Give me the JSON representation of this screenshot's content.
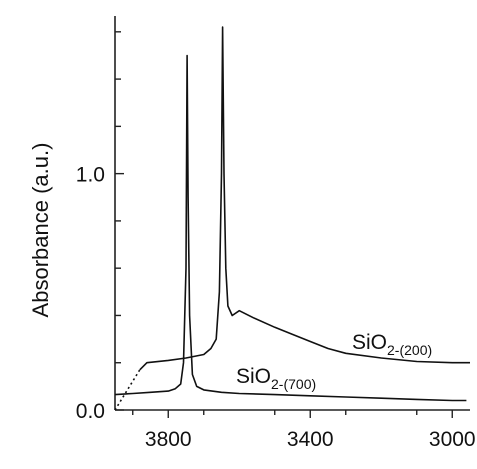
{
  "chart_data": {
    "type": "line",
    "title": "",
    "xlabel": "",
    "ylabel": "Absorbance (a.u.)",
    "xlim": [
      3950,
      2950
    ],
    "ylim": [
      0.0,
      1.65
    ],
    "x_reversed": true,
    "grid": false,
    "x_ticks": [
      3800,
      3400,
      3000
    ],
    "x_tick_labels": [
      "3800",
      "3400",
      "3000"
    ],
    "y_ticks": [
      0.0,
      1.0
    ],
    "y_tick_labels": [
      "0.0",
      "1.0"
    ],
    "y_minor_ticks": [
      0.2,
      0.4,
      0.6,
      0.8,
      1.2,
      1.4,
      1.6
    ],
    "series": [
      {
        "name": "SiO2-(700)",
        "label_main": "SiO",
        "label_sub": "2-(700)",
        "x": [
          3950,
          3900,
          3850,
          3800,
          3780,
          3765,
          3757,
          3750,
          3747,
          3744,
          3740,
          3732,
          3720,
          3700,
          3650,
          3600,
          3500,
          3400,
          3300,
          3200,
          3100,
          3000,
          2960
        ],
        "y": [
          0.065,
          0.07,
          0.075,
          0.08,
          0.09,
          0.11,
          0.2,
          0.6,
          1.5,
          0.9,
          0.4,
          0.15,
          0.1,
          0.085,
          0.075,
          0.07,
          0.065,
          0.06,
          0.055,
          0.05,
          0.045,
          0.04,
          0.04
        ],
        "dotted_extension": {
          "x": [
            3950,
            3880
          ],
          "y": [
            0.0,
            0.17
          ]
        }
      },
      {
        "name": "SiO2-(200)",
        "label_main": "SiO",
        "label_sub": "2-(200)",
        "x": [
          3880,
          3860,
          3800,
          3750,
          3700,
          3680,
          3665,
          3656,
          3650,
          3647,
          3643,
          3638,
          3632,
          3620,
          3600,
          3560,
          3500,
          3450,
          3400,
          3350,
          3300,
          3200,
          3100,
          3000,
          2950
        ],
        "y": [
          0.17,
          0.2,
          0.21,
          0.22,
          0.235,
          0.26,
          0.3,
          0.5,
          1.0,
          1.62,
          1.0,
          0.6,
          0.44,
          0.4,
          0.42,
          0.39,
          0.35,
          0.32,
          0.29,
          0.26,
          0.24,
          0.22,
          0.205,
          0.2,
          0.2
        ]
      }
    ]
  }
}
